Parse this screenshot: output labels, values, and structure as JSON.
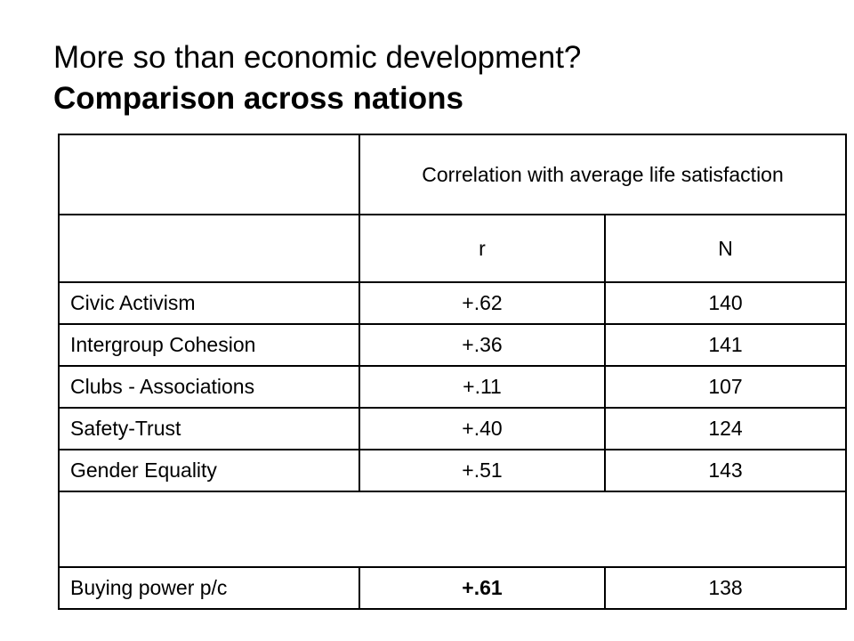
{
  "title": {
    "line1": "More so than economic development?",
    "line2": "Comparison across nations"
  },
  "table": {
    "header": "Correlation with average life satisfaction",
    "col_r": "r",
    "col_n": "N",
    "rows": [
      {
        "label": "Civic Activism",
        "r": "+.62",
        "n": "140"
      },
      {
        "label": "Intergroup Cohesion",
        "r": "+.36",
        "n": "141"
      },
      {
        "label": "Clubs - Associations",
        "r": "+.11",
        "n": "107"
      },
      {
        "label": "Safety-Trust",
        "r": "+.40",
        "n": "124"
      },
      {
        "label": "Gender Equality",
        "r": "+.51",
        "n": "143"
      }
    ],
    "final_row": {
      "label": "Buying power p/c",
      "r": "+.61",
      "n": "138"
    }
  }
}
